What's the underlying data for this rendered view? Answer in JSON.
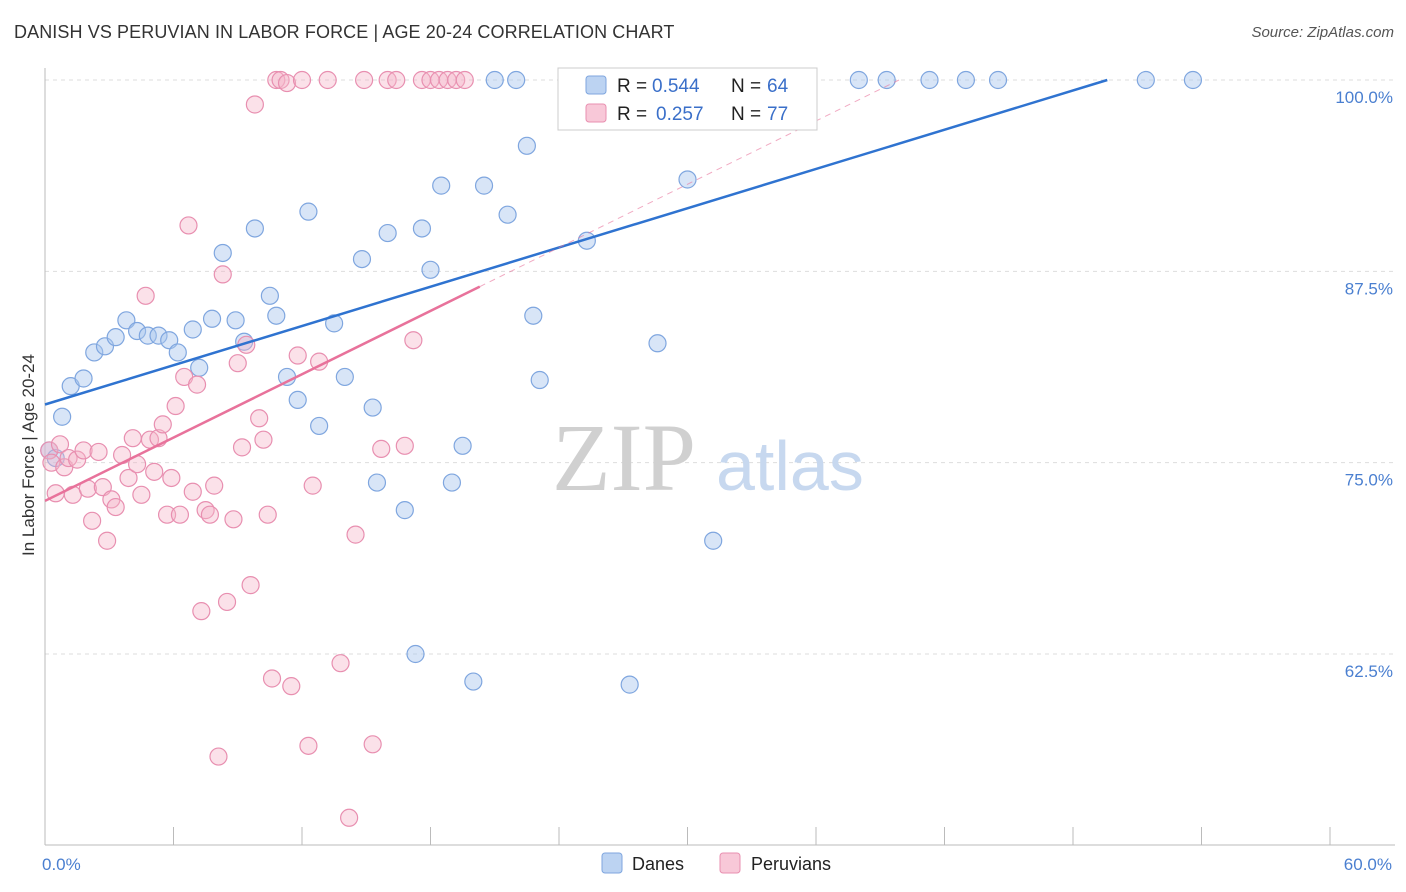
{
  "title": "DANISH VS PERUVIAN IN LABOR FORCE | AGE 20-24 CORRELATION CHART",
  "source": "Source: ZipAtlas.com",
  "watermark": {
    "part1": "ZIP",
    "part2": "atlas"
  },
  "chart_data": {
    "type": "scatter",
    "title": "DANISH VS PERUVIAN IN LABOR FORCE | AGE 20-24 CORRELATION CHART",
    "xlabel": "",
    "ylabel": "In Labor Force | Age 20-24",
    "xlim": [
      0,
      60
    ],
    "ylim": [
      50.5,
      101
    ],
    "x_tick_labels": [
      "0.0%",
      "60.0%"
    ],
    "y_ticks": [
      62.5,
      75.0,
      87.5,
      100.0
    ],
    "y_tick_labels": [
      "62.5%",
      "75.0%",
      "87.5%",
      "100.0%"
    ],
    "grid": true,
    "legend_position": "top-center",
    "colors": {
      "danes": "#a9c5ee",
      "danes_line": "#2f73d0",
      "peruvians": "#f5b3c8",
      "peruvians_line": "#e8729b"
    },
    "legend": [
      {
        "r_label": "R =",
        "r_value": "0.544",
        "n_label": "N =",
        "n_value": "64"
      },
      {
        "r_label": "R =",
        "r_value": "0.257",
        "n_label": "N =",
        "n_value": "77"
      }
    ],
    "series": [
      {
        "name": "Danes",
        "trend": {
          "x": [
            0,
            49.6
          ],
          "y": [
            78.8,
            100.0
          ]
        },
        "points": [
          [
            0.2,
            75.8
          ],
          [
            0.5,
            75.3
          ],
          [
            0.8,
            78.0
          ],
          [
            1.2,
            80.0
          ],
          [
            1.8,
            80.5
          ],
          [
            2.3,
            82.2
          ],
          [
            2.8,
            82.6
          ],
          [
            3.3,
            83.2
          ],
          [
            3.8,
            84.3
          ],
          [
            4.3,
            83.6
          ],
          [
            4.8,
            83.3
          ],
          [
            5.3,
            83.3
          ],
          [
            5.8,
            83.0
          ],
          [
            6.2,
            82.2
          ],
          [
            6.9,
            83.7
          ],
          [
            7.2,
            81.2
          ],
          [
            7.8,
            84.4
          ],
          [
            8.3,
            88.7
          ],
          [
            8.9,
            84.3
          ],
          [
            9.3,
            82.9
          ],
          [
            9.8,
            90.3
          ],
          [
            10.5,
            85.9
          ],
          [
            10.8,
            84.6
          ],
          [
            11.3,
            80.6
          ],
          [
            11.8,
            79.1
          ],
          [
            12.3,
            91.4
          ],
          [
            12.8,
            77.4
          ],
          [
            13.5,
            84.1
          ],
          [
            14.0,
            80.6
          ],
          [
            14.8,
            88.3
          ],
          [
            15.3,
            78.6
          ],
          [
            15.5,
            73.7
          ],
          [
            16.0,
            90.0
          ],
          [
            16.8,
            71.9
          ],
          [
            17.3,
            62.5
          ],
          [
            17.6,
            90.3
          ],
          [
            18.0,
            87.6
          ],
          [
            18.5,
            93.1
          ],
          [
            19.0,
            73.7
          ],
          [
            19.5,
            76.1
          ],
          [
            20.0,
            60.7
          ],
          [
            20.5,
            93.1
          ],
          [
            21.0,
            100.0
          ],
          [
            21.6,
            91.2
          ],
          [
            22.0,
            100.0
          ],
          [
            22.5,
            95.7
          ],
          [
            22.8,
            84.6
          ],
          [
            23.1,
            80.4
          ],
          [
            24.5,
            99.0
          ],
          [
            25.3,
            89.5
          ],
          [
            26.0,
            100.0
          ],
          [
            27.3,
            60.5
          ],
          [
            28.6,
            82.8
          ],
          [
            30.0,
            93.5
          ],
          [
            31.2,
            69.9
          ],
          [
            32.5,
            100.0
          ],
          [
            35.5,
            100.0
          ],
          [
            38.0,
            100.0
          ],
          [
            39.3,
            100.0
          ],
          [
            41.3,
            100.0
          ],
          [
            43.0,
            100.0
          ],
          [
            44.5,
            100.0
          ],
          [
            51.4,
            100.0
          ],
          [
            53.6,
            100.0
          ]
        ]
      },
      {
        "name": "Peruvians",
        "trend": {
          "x": [
            0,
            20.3
          ],
          "y": [
            72.5,
            86.5
          ]
        },
        "points": [
          [
            0.2,
            75.8
          ],
          [
            0.3,
            75.0
          ],
          [
            0.5,
            73.0
          ],
          [
            0.7,
            76.2
          ],
          [
            0.9,
            74.7
          ],
          [
            1.1,
            75.3
          ],
          [
            1.3,
            72.9
          ],
          [
            1.5,
            75.2
          ],
          [
            1.8,
            75.8
          ],
          [
            2.0,
            73.3
          ],
          [
            2.2,
            71.2
          ],
          [
            2.5,
            75.7
          ],
          [
            2.7,
            73.4
          ],
          [
            2.9,
            69.9
          ],
          [
            3.1,
            72.6
          ],
          [
            3.3,
            72.1
          ],
          [
            3.6,
            75.5
          ],
          [
            3.9,
            74.0
          ],
          [
            4.1,
            76.6
          ],
          [
            4.3,
            74.9
          ],
          [
            4.5,
            72.9
          ],
          [
            4.7,
            85.9
          ],
          [
            4.9,
            76.5
          ],
          [
            5.1,
            74.4
          ],
          [
            5.3,
            76.6
          ],
          [
            5.5,
            77.5
          ],
          [
            5.7,
            71.6
          ],
          [
            5.9,
            74.0
          ],
          [
            6.1,
            78.7
          ],
          [
            6.3,
            71.6
          ],
          [
            6.5,
            80.6
          ],
          [
            6.7,
            90.5
          ],
          [
            6.9,
            73.1
          ],
          [
            7.1,
            80.1
          ],
          [
            7.3,
            65.3
          ],
          [
            7.5,
            71.9
          ],
          [
            7.7,
            71.6
          ],
          [
            7.9,
            73.5
          ],
          [
            8.1,
            55.8
          ],
          [
            8.3,
            87.3
          ],
          [
            8.5,
            65.9
          ],
          [
            8.8,
            71.3
          ],
          [
            9.0,
            81.5
          ],
          [
            9.2,
            76.0
          ],
          [
            9.4,
            82.7
          ],
          [
            9.6,
            67.0
          ],
          [
            9.8,
            98.4
          ],
          [
            10.0,
            77.9
          ],
          [
            10.2,
            76.5
          ],
          [
            10.4,
            71.6
          ],
          [
            10.6,
            60.9
          ],
          [
            10.8,
            100.0
          ],
          [
            11.0,
            100.0
          ],
          [
            11.3,
            99.8
          ],
          [
            11.5,
            60.4
          ],
          [
            11.8,
            82.0
          ],
          [
            12.0,
            100.0
          ],
          [
            12.3,
            56.5
          ],
          [
            12.5,
            73.5
          ],
          [
            12.8,
            81.6
          ],
          [
            13.2,
            100.0
          ],
          [
            13.8,
            61.9
          ],
          [
            14.2,
            51.8
          ],
          [
            14.5,
            70.3
          ],
          [
            14.9,
            100.0
          ],
          [
            15.3,
            56.6
          ],
          [
            15.7,
            75.9
          ],
          [
            16.0,
            100.0
          ],
          [
            16.4,
            100.0
          ],
          [
            16.8,
            76.1
          ],
          [
            17.2,
            83.0
          ],
          [
            17.6,
            100.0
          ],
          [
            18.0,
            100.0
          ],
          [
            18.4,
            100.0
          ],
          [
            18.8,
            100.0
          ],
          [
            19.2,
            100.0
          ],
          [
            19.6,
            100.0
          ]
        ]
      }
    ]
  }
}
